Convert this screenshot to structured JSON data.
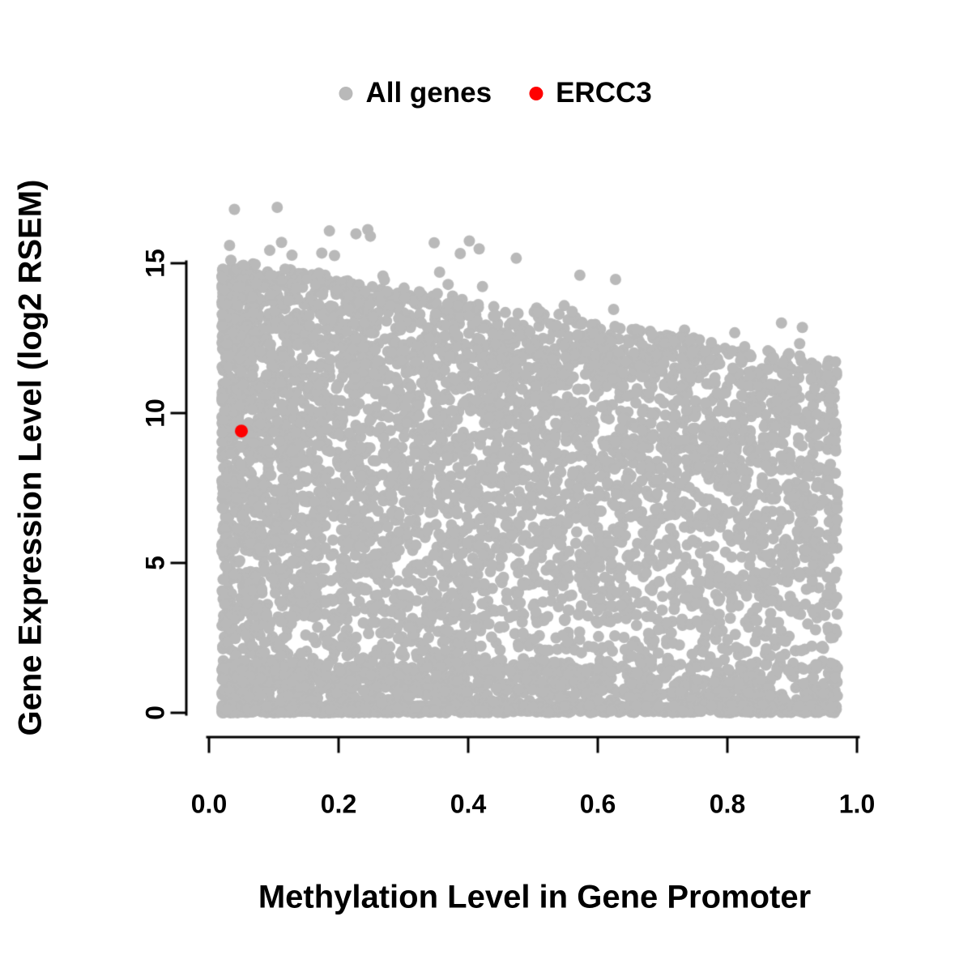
{
  "legend": {
    "items": [
      {
        "label": "All genes",
        "color": "#b9b9b9"
      },
      {
        "label": "ERCC3",
        "color": "#ff0000"
      }
    ]
  },
  "chart_data": {
    "type": "scatter",
    "title": "",
    "xlabel": "Methylation Level in Gene Promoter",
    "ylabel": "Gene Expression Level (log2 RSEM)",
    "xlim": [
      0.0,
      1.0
    ],
    "ylim": [
      0,
      15
    ],
    "x_ticks": [
      0.0,
      0.2,
      0.4,
      0.6,
      0.8,
      1.0
    ],
    "x_tick_labels": [
      "0.0",
      "0.2",
      "0.4",
      "0.6",
      "0.8",
      "1.0"
    ],
    "y_ticks": [
      0,
      5,
      10,
      15
    ],
    "y_tick_labels": [
      "0",
      "5",
      "10",
      "15"
    ],
    "grid": false,
    "legend_position": "top",
    "series": [
      {
        "name": "All genes",
        "color": "#b9b9b9",
        "kind": "cloud",
        "n": 6800,
        "seed": 42,
        "x_min": 0.02,
        "x_max": 0.97,
        "upper_envelope": [
          15.3,
          11.6
        ],
        "y_max": 17.1,
        "point_radius": 7
      },
      {
        "name": "ERCC3",
        "color": "#ff0000",
        "kind": "points",
        "points": [
          [
            0.05,
            9.4
          ]
        ],
        "point_radius": 8
      }
    ]
  }
}
